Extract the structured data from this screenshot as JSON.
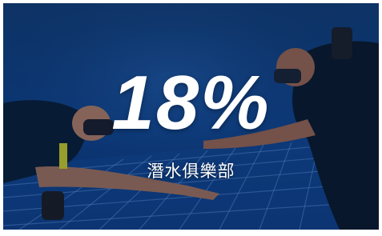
{
  "overlay": {
    "headline": "18%",
    "caption": "潛水俱樂部"
  }
}
